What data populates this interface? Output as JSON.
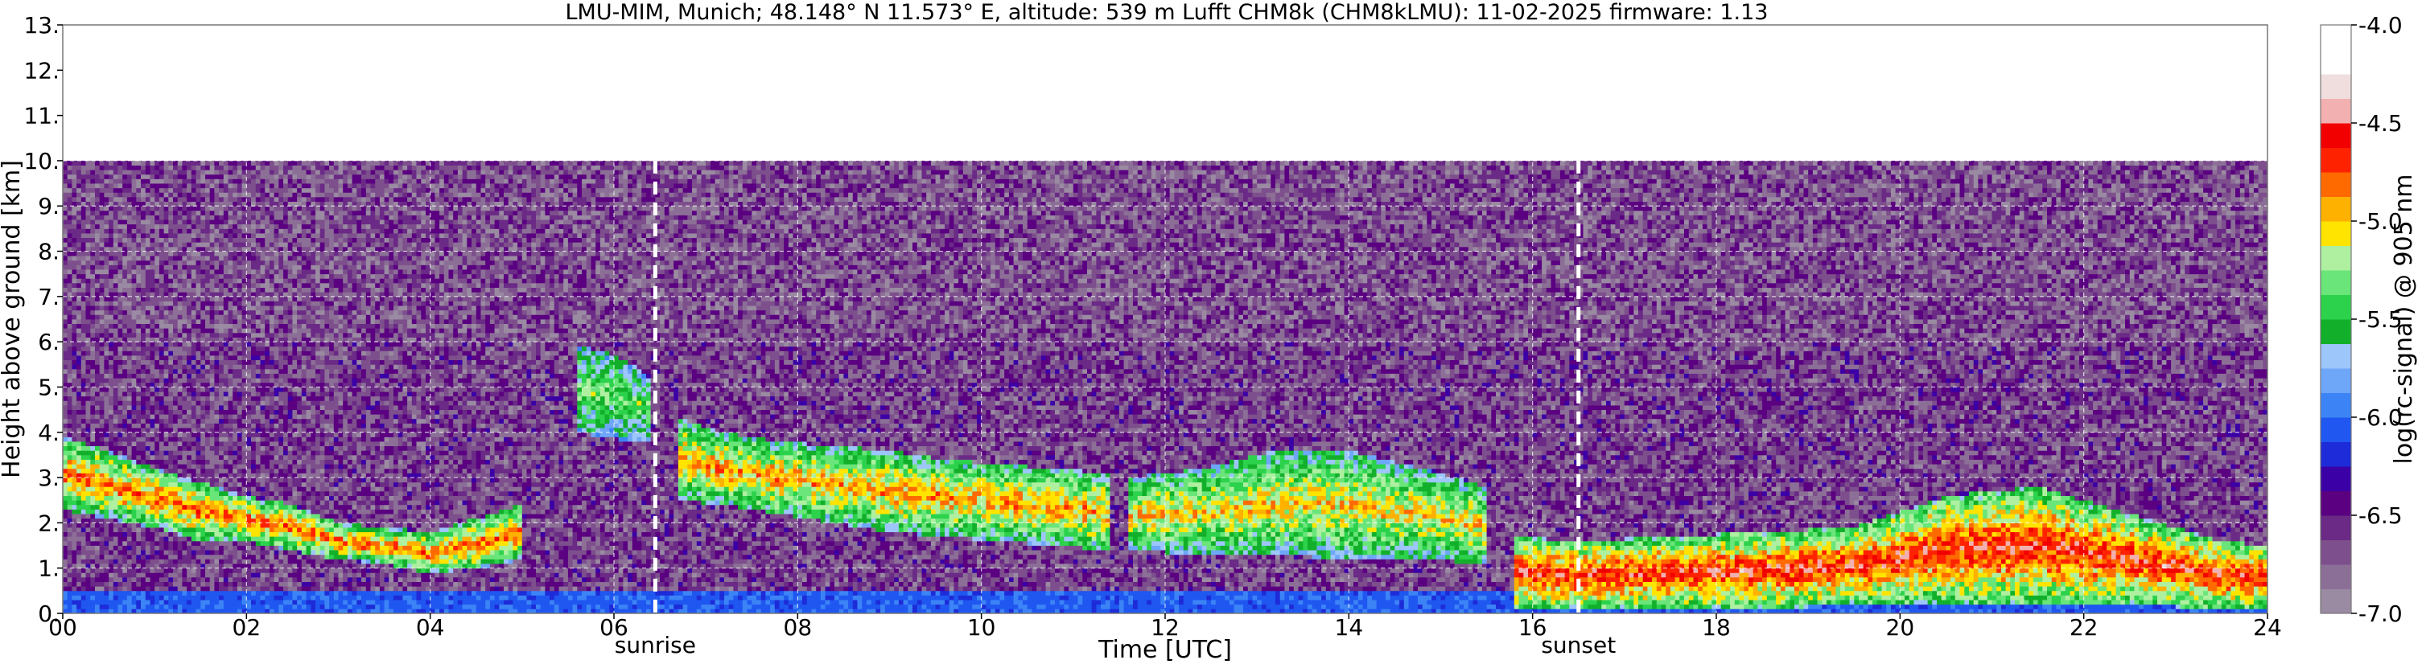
{
  "title": "LMU-MIM, Munich; 48.148° N 11.573° E, altitude: 539 m    Lufft CHM8k (CHM8kLMU): 11-02-2025    firmware: 1.13",
  "chart_data": {
    "type": "heatmap",
    "title": "LMU-MIM, Munich; 48.148° N 11.573° E, altitude: 539 m    Lufft CHM8k (CHM8kLMU): 11-02-2025    firmware: 1.13",
    "xlabel": "Time [UTC]",
    "ylabel": "Height above ground [km]",
    "colorbar_label": "log(rc-signal) @ 905 nm",
    "xlim": [
      0,
      24
    ],
    "ylim": [
      0,
      13
    ],
    "x_ticks": [
      0,
      2,
      4,
      6,
      8,
      10,
      12,
      14,
      16,
      18,
      20,
      22,
      24
    ],
    "x_tick_labels": [
      "00",
      "02",
      "04",
      "06",
      "08",
      "10",
      "12",
      "14",
      "16",
      "18",
      "20",
      "22",
      "24"
    ],
    "y_ticks": [
      0,
      1,
      2,
      3,
      4,
      5,
      6,
      7,
      8,
      9,
      10,
      11,
      12,
      13
    ],
    "y_tick_labels": [
      "0.",
      "1.",
      "2.",
      "3.",
      "4.",
      "5.",
      "6.",
      "7.",
      "8.",
      "9.",
      "10.",
      "11.",
      "12.",
      "13."
    ],
    "colorbar_range": [
      -7.0,
      -4.0
    ],
    "colorbar_ticks": [
      -7.0,
      -6.5,
      -6.0,
      -5.5,
      -5.0,
      -4.5,
      -4.0
    ],
    "colorbar_tick_labels": [
      "-7.0",
      "-6.5",
      "-6.0",
      "-5.5",
      "-5.0",
      "-4.5",
      "-4.0"
    ],
    "colormap": [
      "#9a8aa2",
      "#8c6f96",
      "#7d4f8c",
      "#6a2a86",
      "#5a0080",
      "#3b00a6",
      "#1d2bd8",
      "#1f57f0",
      "#3c84f6",
      "#6ea6f8",
      "#9dc6fa",
      "#12b02a",
      "#2cd24c",
      "#6ae57a",
      "#aef0a0",
      "#ffe400",
      "#ffb100",
      "#ff6a00",
      "#ff2200",
      "#f20000",
      "#f2b0b0",
      "#f0dede",
      "#ffffff",
      "#ffffff"
    ],
    "grid": true,
    "data_top_km": 10.0,
    "annotations": [
      {
        "label": "sunrise",
        "x": 6.45
      },
      {
        "label": "sunset",
        "x": 16.5
      }
    ],
    "cloud_layers": [
      {
        "t": [
          0.0,
          0.5,
          1.0,
          1.5,
          2.0,
          2.5,
          3.0,
          3.5,
          4.0,
          4.5,
          5.0
        ],
        "base": [
          2.3,
          2.1,
          1.9,
          1.6,
          1.6,
          1.4,
          1.2,
          1.1,
          0.9,
          1.0,
          1.2
        ],
        "top": [
          3.9,
          3.6,
          3.2,
          2.9,
          2.6,
          2.4,
          2.0,
          1.9,
          1.8,
          2.1,
          2.4
        ],
        "intensity": -4.8
      },
      {
        "t": [
          5.6,
          5.9,
          6.2,
          6.4
        ],
        "base": [
          4.0,
          3.9,
          3.8,
          3.8
        ],
        "top": [
          5.9,
          5.8,
          5.5,
          5.2
        ],
        "intensity": -5.3
      },
      {
        "t": [
          6.7,
          7.2,
          7.8,
          8.4,
          9.0,
          9.6,
          10.2,
          10.8,
          11.4
        ],
        "base": [
          2.5,
          2.4,
          2.2,
          2.0,
          1.8,
          1.7,
          1.6,
          1.5,
          1.4
        ],
        "top": [
          4.3,
          4.0,
          3.8,
          3.7,
          3.6,
          3.4,
          3.3,
          3.2,
          3.1
        ],
        "intensity": -4.9
      },
      {
        "t": [
          11.6,
          12.4,
          13.2,
          14.0,
          14.8,
          15.5
        ],
        "base": [
          1.4,
          1.3,
          1.3,
          1.2,
          1.2,
          1.1
        ],
        "top": [
          3.0,
          3.2,
          3.6,
          3.6,
          3.2,
          2.8
        ],
        "intensity": -5.0
      },
      {
        "t": [
          15.8,
          16.5,
          17.5,
          18.5,
          19.5,
          20.5,
          21.5,
          22.5,
          23.5,
          24.0
        ],
        "base": [
          0.1,
          0.1,
          0.1,
          0.1,
          0.2,
          0.2,
          0.2,
          0.2,
          0.1,
          0.1
        ],
        "top": [
          1.7,
          1.6,
          1.7,
          1.8,
          1.9,
          2.6,
          2.8,
          2.2,
          1.6,
          1.5
        ],
        "intensity": -4.6
      }
    ]
  }
}
